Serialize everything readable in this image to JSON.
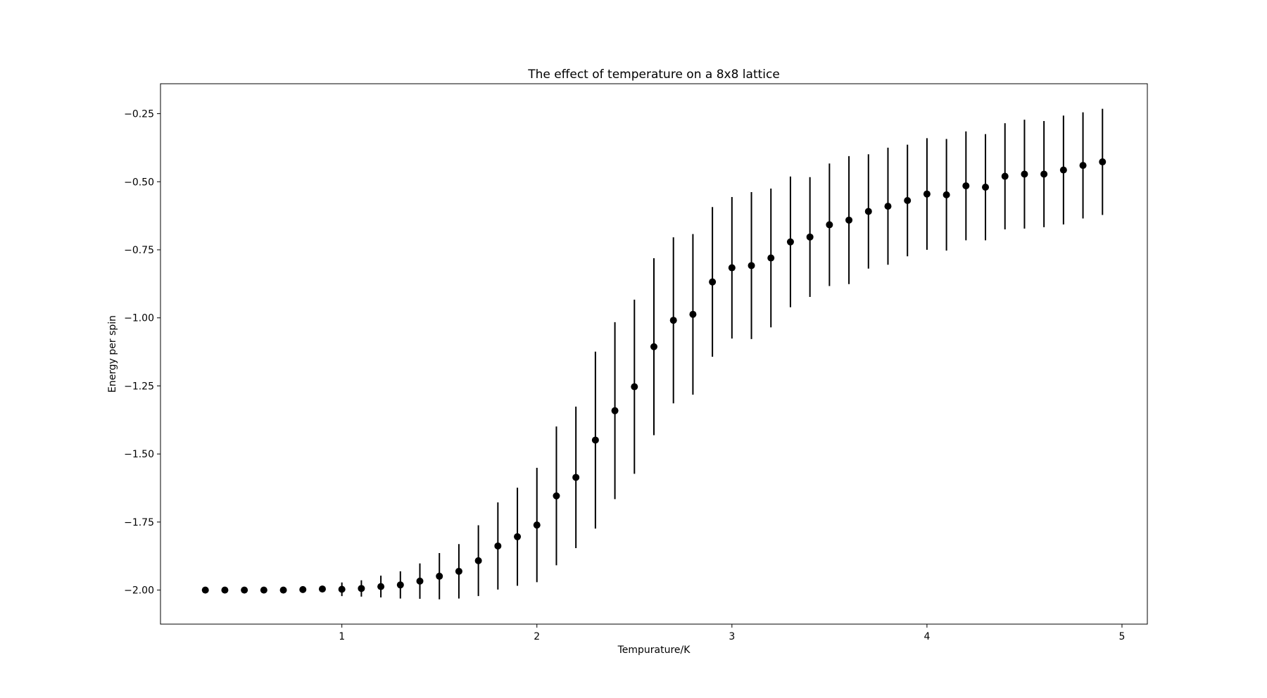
{
  "chart_data": {
    "type": "scatter",
    "title": "The effect of temperature on a 8x8 lattice",
    "xlabel": "Tempurature/K",
    "ylabel": "Energy per spin",
    "xlim": [
      0.07,
      5.13
    ],
    "ylim": [
      -2.125,
      -0.14
    ],
    "xticks": [
      1,
      2,
      3,
      4,
      5
    ],
    "xtick_labels": [
      "1",
      "2",
      "3",
      "4",
      "5"
    ],
    "yticks": [
      -2.0,
      -1.75,
      -1.5,
      -1.25,
      -1.0,
      -0.75,
      -0.5,
      -0.25
    ],
    "ytick_labels": [
      "−2.00",
      "−1.75",
      "−1.50",
      "−1.25",
      "−1.00",
      "−0.75",
      "−0.50",
      "−0.25"
    ],
    "grid": false,
    "marker_color": "#000000",
    "errorbars": true,
    "series": [
      {
        "x": [
          0.3,
          0.4,
          0.5,
          0.6,
          0.7,
          0.8,
          0.9,
          1.0,
          1.1,
          1.2,
          1.3,
          1.4,
          1.5,
          1.6,
          1.7,
          1.8,
          1.9,
          2.0,
          2.1,
          2.2,
          2.3,
          2.4,
          2.5,
          2.6,
          2.7,
          2.8,
          2.9,
          3.0,
          3.1,
          3.2,
          3.3,
          3.4,
          3.5,
          3.6,
          3.7,
          3.8,
          3.9,
          4.0,
          4.1,
          4.2,
          4.3,
          4.4,
          4.5,
          4.6,
          4.7,
          4.8,
          4.9
        ],
        "y": [
          -2.0,
          -2.0,
          -2.0,
          -2.0,
          -2.0,
          -1.998,
          -1.996,
          -1.997,
          -1.994,
          -1.987,
          -1.981,
          -1.967,
          -1.949,
          -1.931,
          -1.892,
          -1.838,
          -1.804,
          -1.761,
          -1.654,
          -1.586,
          -1.449,
          -1.341,
          -1.253,
          -1.106,
          -1.009,
          -0.987,
          -0.868,
          -0.816,
          -0.808,
          -0.78,
          -0.721,
          -0.703,
          -0.658,
          -0.641,
          -0.609,
          -0.59,
          -0.569,
          -0.545,
          -0.548,
          -0.515,
          -0.52,
          -0.48,
          -0.472,
          -0.472,
          -0.457,
          -0.44,
          -0.427
        ],
        "error": [
          0.0,
          0.0,
          0.0,
          0.0,
          0.0,
          0.005,
          0.012,
          0.025,
          0.03,
          0.04,
          0.05,
          0.065,
          0.085,
          0.1,
          0.13,
          0.16,
          0.18,
          0.21,
          0.255,
          0.26,
          0.325,
          0.325,
          0.32,
          0.325,
          0.305,
          0.295,
          0.275,
          0.26,
          0.27,
          0.255,
          0.24,
          0.22,
          0.225,
          0.235,
          0.21,
          0.215,
          0.205,
          0.205,
          0.205,
          0.2,
          0.195,
          0.195,
          0.2,
          0.195,
          0.2,
          0.195,
          0.195
        ]
      }
    ]
  }
}
